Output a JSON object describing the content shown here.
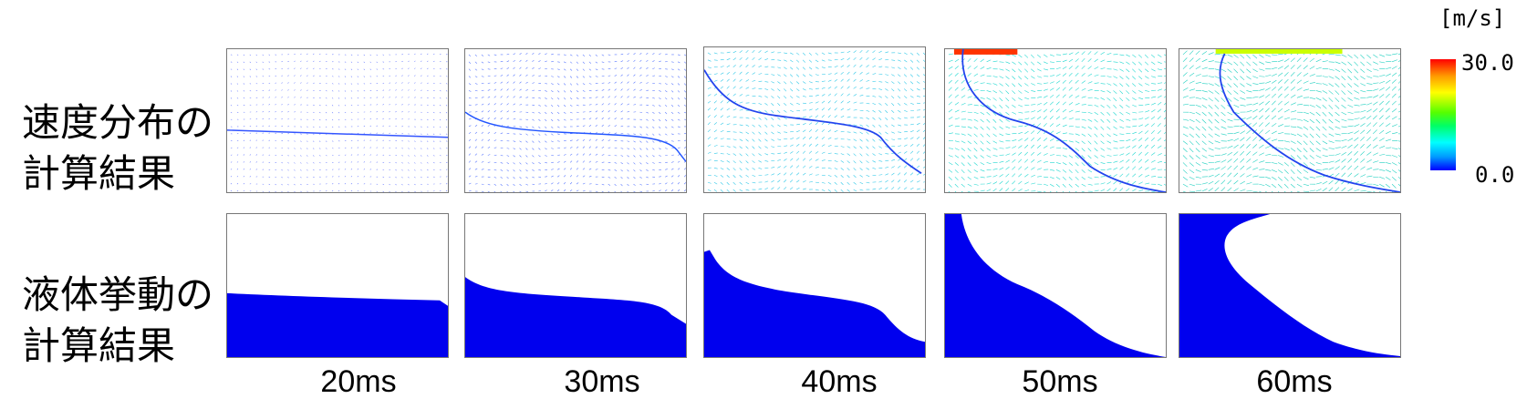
{
  "rows": [
    {
      "label_line1": "速度分布の",
      "label_line2": "計算結果"
    },
    {
      "label_line1": "液体挙動の",
      "label_line2": "計算結果"
    }
  ],
  "times": [
    "20ms",
    "30ms",
    "40ms",
    "50ms",
    "60ms"
  ],
  "colorbar": {
    "unit": "[m/s]",
    "max_label": "30.0",
    "min_label": "0.0"
  },
  "colors": {
    "liquid": "#0000ee",
    "vector_low": "#1a3cff",
    "vector_high": "#ff2200"
  }
}
